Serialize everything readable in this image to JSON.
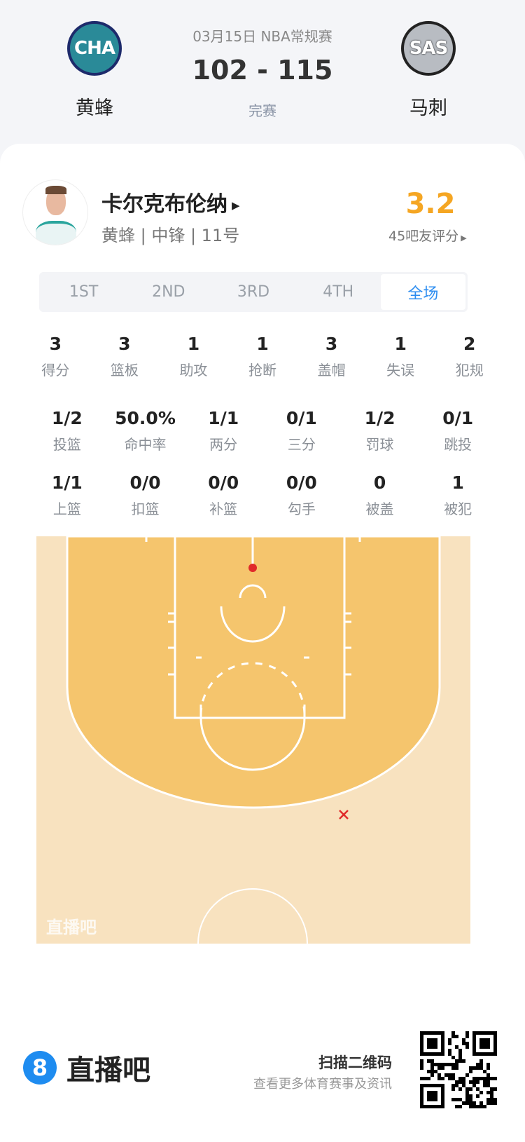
{
  "match": {
    "date_type": "03月15日 NBA常规赛",
    "score": "102 - 115",
    "status": "完赛",
    "home": {
      "abbr": "CHA",
      "name": "黄蜂",
      "color": "#1d7d8f"
    },
    "away": {
      "abbr": "SAS",
      "name": "马刺",
      "color": "#2b2b2b"
    }
  },
  "player": {
    "name": "卡尔克布伦纳",
    "meta": "黄蜂 | 中锋 | 11号",
    "rating": "3.2",
    "rating_count": "45吧友评分",
    "rating_color": "#f5a623"
  },
  "tabs": [
    {
      "label": "1ST"
    },
    {
      "label": "2ND"
    },
    {
      "label": "3RD"
    },
    {
      "label": "4TH"
    },
    {
      "label": "全场",
      "selected": true
    }
  ],
  "stats_row1": [
    {
      "v": "3",
      "l": "得分"
    },
    {
      "v": "3",
      "l": "篮板"
    },
    {
      "v": "1",
      "l": "助攻"
    },
    {
      "v": "1",
      "l": "抢断"
    },
    {
      "v": "3",
      "l": "盖帽"
    },
    {
      "v": "1",
      "l": "失误"
    },
    {
      "v": "2",
      "l": "犯规"
    }
  ],
  "stats_row2": [
    {
      "v": "1/2",
      "l": "投篮"
    },
    {
      "v": "50.0%",
      "l": "命中率"
    },
    {
      "v": "1/1",
      "l": "两分"
    },
    {
      "v": "0/1",
      "l": "三分"
    },
    {
      "v": "1/2",
      "l": "罚球"
    },
    {
      "v": "0/1",
      "l": "跳投"
    }
  ],
  "stats_row3": [
    {
      "v": "1/1",
      "l": "上篮"
    },
    {
      "v": "0/0",
      "l": "扣篮"
    },
    {
      "v": "0/0",
      "l": "补篮"
    },
    {
      "v": "0/0",
      "l": "勾手"
    },
    {
      "v": "0",
      "l": "被盖"
    },
    {
      "v": "1",
      "l": "被犯"
    }
  ],
  "court": {
    "watermark": "直播吧",
    "shots": [
      {
        "result": "made",
        "zone": "rim"
      },
      {
        "result": "missed",
        "zone": "three-point right wing"
      }
    ]
  },
  "footer": {
    "brand": "直播吧",
    "brand_icon": "8",
    "scan": "扫描二维码",
    "sub": "查看更多体育赛事及资讯"
  }
}
